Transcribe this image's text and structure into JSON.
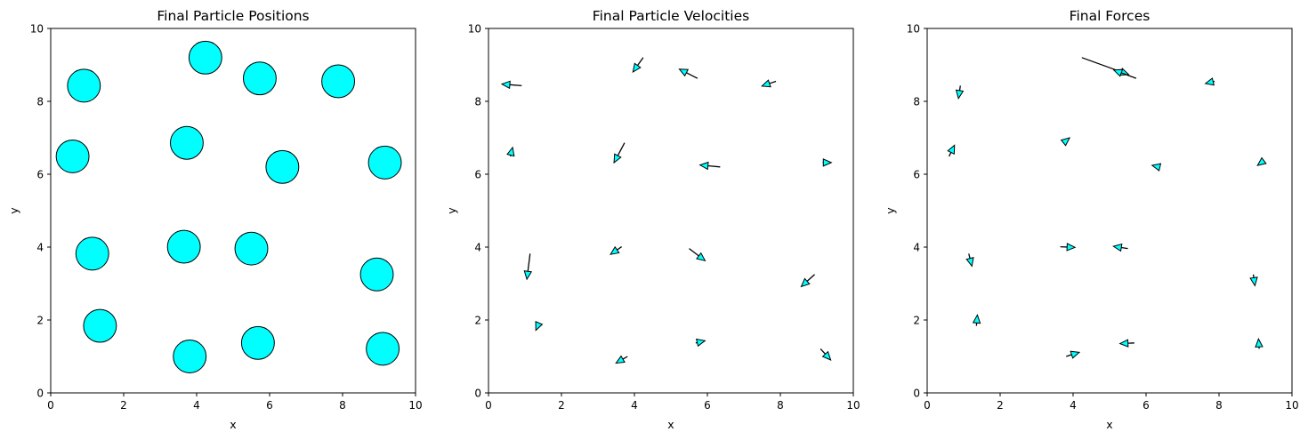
{
  "colors": {
    "particle": "#00ffff",
    "edge": "#000000"
  },
  "chart_data": [
    {
      "type": "scatter",
      "title": "Final Particle Positions",
      "xlabel": "x",
      "ylabel": "y",
      "xlim": [
        0,
        10
      ],
      "ylim": [
        0,
        10
      ],
      "xticks": [
        0,
        2,
        4,
        6,
        8,
        10
      ],
      "yticks": [
        0,
        2,
        4,
        6,
        8,
        10
      ],
      "particle_radius": 0.45,
      "points": [
        {
          "x": 0.91,
          "y": 8.43
        },
        {
          "x": 4.24,
          "y": 9.2
        },
        {
          "x": 5.73,
          "y": 8.63
        },
        {
          "x": 7.88,
          "y": 8.55
        },
        {
          "x": 0.6,
          "y": 6.49
        },
        {
          "x": 3.73,
          "y": 6.86
        },
        {
          "x": 6.35,
          "y": 6.2
        },
        {
          "x": 9.16,
          "y": 6.32
        },
        {
          "x": 1.14,
          "y": 3.82
        },
        {
          "x": 3.65,
          "y": 4.01
        },
        {
          "x": 5.5,
          "y": 3.96
        },
        {
          "x": 8.94,
          "y": 3.25
        },
        {
          "x": 1.35,
          "y": 1.84
        },
        {
          "x": 3.81,
          "y": 1.0
        },
        {
          "x": 5.68,
          "y": 1.37
        },
        {
          "x": 9.1,
          "y": 1.21
        }
      ]
    },
    {
      "type": "quiver",
      "title": "Final Particle Velocities",
      "xlabel": "x",
      "ylabel": "y",
      "xlim": [
        0,
        10
      ],
      "ylim": [
        0,
        10
      ],
      "xticks": [
        0,
        2,
        4,
        6,
        8,
        10
      ],
      "yticks": [
        0,
        2,
        4,
        6,
        8,
        10
      ],
      "arrows": [
        {
          "x": 0.91,
          "y": 8.43,
          "u": -0.62,
          "v": 0.05
        },
        {
          "x": 4.24,
          "y": 9.2,
          "u": -0.32,
          "v": -0.45
        },
        {
          "x": 5.73,
          "y": 8.63,
          "u": -0.57,
          "v": 0.29
        },
        {
          "x": 7.88,
          "y": 8.55,
          "u": -0.44,
          "v": -0.15
        },
        {
          "x": 0.6,
          "y": 6.49,
          "u": 0.07,
          "v": 0.28
        },
        {
          "x": 3.73,
          "y": 6.86,
          "u": -0.33,
          "v": -0.62
        },
        {
          "x": 6.35,
          "y": 6.2,
          "u": -0.63,
          "v": 0.06
        },
        {
          "x": 9.16,
          "y": 6.32,
          "u": 0.27,
          "v": 0.0
        },
        {
          "x": 1.14,
          "y": 3.82,
          "u": -0.1,
          "v": -0.8
        },
        {
          "x": 3.65,
          "y": 4.01,
          "u": -0.35,
          "v": -0.24
        },
        {
          "x": 5.5,
          "y": 3.96,
          "u": 0.5,
          "v": -0.38
        },
        {
          "x": 8.94,
          "y": 3.25,
          "u": -0.42,
          "v": -0.38
        },
        {
          "x": 1.35,
          "y": 1.84,
          "u": -0.06,
          "v": -0.14
        },
        {
          "x": 3.81,
          "y": 1.0,
          "u": -0.36,
          "v": -0.21
        },
        {
          "x": 5.68,
          "y": 1.37,
          "u": 0.29,
          "v": 0.07
        },
        {
          "x": 9.1,
          "y": 1.21,
          "u": 0.32,
          "v": -0.35
        }
      ]
    },
    {
      "type": "quiver",
      "title": "Final Forces",
      "xlabel": "x",
      "ylabel": "y",
      "xlim": [
        0,
        10
      ],
      "ylim": [
        0,
        10
      ],
      "xticks": [
        0,
        2,
        4,
        6,
        8,
        10
      ],
      "yticks": [
        0,
        2,
        4,
        6,
        8,
        10
      ],
      "arrows": [
        {
          "x": 0.91,
          "y": 8.43,
          "u": -0.06,
          "v": -0.4
        },
        {
          "x": 4.24,
          "y": 9.2,
          "u": 1.46,
          "v": -0.53
        },
        {
          "x": 5.73,
          "y": 8.63,
          "u": -0.7,
          "v": 0.26
        },
        {
          "x": 7.88,
          "y": 8.55,
          "u": -0.29,
          "v": -0.07
        },
        {
          "x": 0.6,
          "y": 6.49,
          "u": 0.17,
          "v": 0.35
        },
        {
          "x": 3.73,
          "y": 6.86,
          "u": 0.2,
          "v": 0.16
        },
        {
          "x": 6.35,
          "y": 6.2,
          "u": -0.21,
          "v": 0.05
        },
        {
          "x": 9.16,
          "y": 6.32,
          "u": -0.12,
          "v": -0.09
        },
        {
          "x": 1.14,
          "y": 3.82,
          "u": 0.1,
          "v": -0.39
        },
        {
          "x": 3.65,
          "y": 4.01,
          "u": 0.46,
          "v": -0.02
        },
        {
          "x": 5.5,
          "y": 3.96,
          "u": -0.45,
          "v": 0.07
        },
        {
          "x": 8.94,
          "y": 3.25,
          "u": 0.05,
          "v": -0.35
        },
        {
          "x": 1.35,
          "y": 1.84,
          "u": 0.03,
          "v": 0.34
        },
        {
          "x": 3.81,
          "y": 1.0,
          "u": 0.41,
          "v": 0.13
        },
        {
          "x": 5.68,
          "y": 1.37,
          "u": -0.45,
          "v": -0.02
        },
        {
          "x": 9.1,
          "y": 1.21,
          "u": -0.02,
          "v": 0.31
        }
      ]
    }
  ]
}
